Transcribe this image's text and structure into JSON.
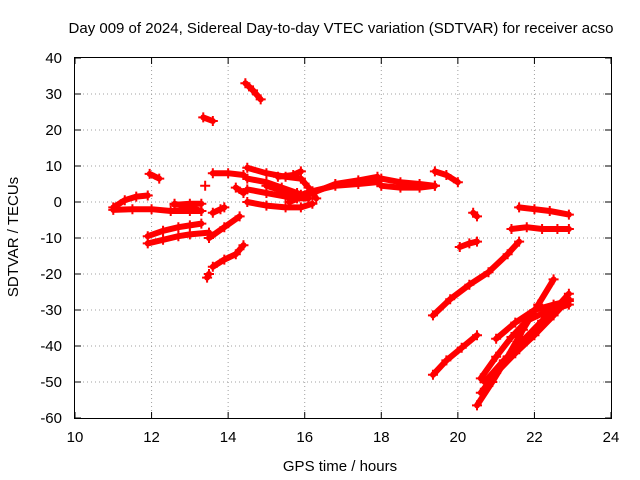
{
  "chart_data": {
    "type": "scatter",
    "title": "Day 009 of 2024, Sidereal Day-to-day VTEC variation (SDTVAR) for receiver acso",
    "xlabel": "GPS time / hours",
    "ylabel": "SDTVAR / TECUs",
    "xlim": [
      10,
      24
    ],
    "ylim": [
      -60,
      40
    ],
    "xticks": [
      "10",
      "12",
      "14",
      "16",
      "18",
      "20",
      "22",
      "24"
    ],
    "yticks": [
      "40",
      "30",
      "20",
      "10",
      "0",
      "-10",
      "-20",
      "-30",
      "-40",
      "-50",
      "-60"
    ],
    "grid": true,
    "marker": "+",
    "color": "#ff0000",
    "series": [
      {
        "x": [
          11.0,
          11.3,
          11.6,
          11.9
        ],
        "y": [
          -1.5,
          0.5,
          1.5,
          1.8
        ]
      },
      {
        "x": [
          11.0,
          11.5,
          12.0,
          12.5,
          13.0,
          13.3
        ],
        "y": [
          -2.2,
          -2.0,
          -2.0,
          -2.5,
          -2.5,
          -2.5
        ]
      },
      {
        "x": [
          11.95,
          12.2
        ],
        "y": [
          7.8,
          6.5
        ]
      },
      {
        "x": [
          12.6,
          13.0,
          13.3
        ],
        "y": [
          -0.5,
          -1.5,
          -2.5
        ]
      },
      {
        "x": [
          12.6,
          13.0,
          13.3
        ],
        "y": [
          -0.8,
          -0.5,
          -0.5
        ]
      },
      {
        "x": [
          11.9,
          12.3,
          12.7,
          13.0,
          13.3
        ],
        "y": [
          -9.5,
          -8.0,
          -7.0,
          -6.5,
          -6.0
        ]
      },
      {
        "x": [
          11.9,
          12.3,
          12.7,
          13.0,
          13.5
        ],
        "y": [
          -11.5,
          -10.5,
          -9.5,
          -9.0,
          -8.5
        ]
      },
      {
        "x": [
          13.35,
          13.6
        ],
        "y": [
          23.5,
          22.5
        ]
      },
      {
        "x": [
          13.4
        ],
        "y": [
          4.5
        ]
      },
      {
        "x": [
          13.45,
          13.5
        ],
        "y": [
          -21.0,
          -20.0
        ]
      },
      {
        "x": [
          13.6,
          13.9,
          14.2,
          14.4
        ],
        "y": [
          -18.0,
          -16.0,
          -14.5,
          -12.0
        ]
      },
      {
        "x": [
          13.5,
          13.9,
          14.3
        ],
        "y": [
          -10.0,
          -7.0,
          -4.0
        ]
      },
      {
        "x": [
          13.6,
          13.8,
          13.9
        ],
        "y": [
          -3.0,
          -2.0,
          -1.5
        ]
      },
      {
        "x": [
          13.6,
          14.0,
          14.4
        ],
        "y": [
          8.0,
          8.0,
          7.5
        ]
      },
      {
        "x": [
          14.2,
          14.4
        ],
        "y": [
          4.0,
          2.5
        ]
      },
      {
        "x": [
          14.45,
          14.65,
          14.85
        ],
        "y": [
          33.0,
          31.0,
          28.5
        ]
      },
      {
        "x": [
          14.5,
          15.0,
          15.5,
          15.9,
          16.1,
          16.3
        ],
        "y": [
          9.5,
          8.0,
          7.0,
          6.5,
          4.0,
          1.0
        ]
      },
      {
        "x": [
          14.5,
          15.0,
          15.4,
          15.8,
          16.0
        ],
        "y": [
          6.5,
          5.5,
          4.0,
          2.5,
          1.5
        ]
      },
      {
        "x": [
          14.5,
          15.0,
          15.5,
          15.8,
          16.1
        ],
        "y": [
          3.5,
          2.5,
          1.5,
          1.0,
          1.0
        ]
      },
      {
        "x": [
          14.5,
          15.0,
          15.5,
          15.9,
          16.2
        ],
        "y": [
          0.0,
          -1.0,
          -1.5,
          -1.5,
          -0.5
        ]
      },
      {
        "x": [
          15.0,
          15.6,
          15.9
        ],
        "y": [
          4.5,
          2.5,
          2.0
        ]
      },
      {
        "x": [
          15.3,
          15.7,
          15.9
        ],
        "y": [
          7.0,
          7.5,
          8.5
        ]
      },
      {
        "x": [
          15.6,
          16.2,
          16.8,
          17.4,
          17.9
        ],
        "y": [
          1.0,
          3.0,
          4.5,
          5.0,
          5.5
        ]
      },
      {
        "x": [
          15.6,
          16.2,
          16.8,
          17.4,
          17.9
        ],
        "y": [
          0.0,
          2.5,
          5.0,
          6.0,
          7.0
        ]
      },
      {
        "x": [
          18.0,
          18.5,
          19.0,
          19.4
        ],
        "y": [
          6.5,
          5.5,
          5.0,
          4.5
        ]
      },
      {
        "x": [
          18.0,
          18.5,
          19.0,
          19.4
        ],
        "y": [
          4.5,
          4.0,
          4.0,
          4.5
        ]
      },
      {
        "x": [
          19.4,
          19.7,
          20.0
        ],
        "y": [
          8.5,
          7.5,
          5.5
        ]
      },
      {
        "x": [
          20.4,
          20.5
        ],
        "y": [
          -3.0,
          -4.0
        ]
      },
      {
        "x": [
          20.05,
          20.3,
          20.5
        ],
        "y": [
          -12.5,
          -11.5,
          -11.0
        ]
      },
      {
        "x": [
          19.35,
          19.8,
          20.3,
          20.8,
          21.3,
          21.6
        ],
        "y": [
          -31.5,
          -27.0,
          -23.0,
          -19.5,
          -14.5,
          -11.0
        ]
      },
      {
        "x": [
          19.35,
          19.7,
          20.1,
          20.5
        ],
        "y": [
          -48.0,
          -44.0,
          -40.5,
          -37.0
        ]
      },
      {
        "x": [
          21.4,
          21.8,
          22.2,
          22.6,
          22.9
        ],
        "y": [
          -7.5,
          -7.0,
          -7.5,
          -7.5,
          -7.5
        ]
      },
      {
        "x": [
          21.6,
          22.0,
          22.4,
          22.9
        ],
        "y": [
          -1.5,
          -2.0,
          -2.5,
          -3.5
        ]
      },
      {
        "x": [
          20.5,
          20.9,
          21.3,
          21.7,
          22.1,
          22.5
        ],
        "y": [
          -56.5,
          -50.0,
          -43.0,
          -35.5,
          -28.5,
          -21.5
        ]
      },
      {
        "x": [
          20.6,
          21.0,
          21.5,
          22.0,
          22.5,
          22.9
        ],
        "y": [
          -53.0,
          -47.5,
          -42.0,
          -37.0,
          -31.5,
          -27.0
        ]
      },
      {
        "x": [
          20.7,
          21.2,
          21.7,
          22.2,
          22.6,
          22.9
        ],
        "y": [
          -50.0,
          -44.0,
          -38.5,
          -33.0,
          -29.0,
          -25.5
        ]
      },
      {
        "x": [
          20.6,
          21.0,
          21.4,
          21.8,
          22.2,
          22.6,
          22.9
        ],
        "y": [
          -49.0,
          -43.0,
          -37.5,
          -33.0,
          -31.0,
          -29.5,
          -28.5
        ]
      },
      {
        "x": [
          21.0,
          21.5,
          22.0,
          22.5,
          22.9
        ],
        "y": [
          -38.0,
          -33.5,
          -30.0,
          -28.5,
          -27.5
        ]
      }
    ]
  }
}
